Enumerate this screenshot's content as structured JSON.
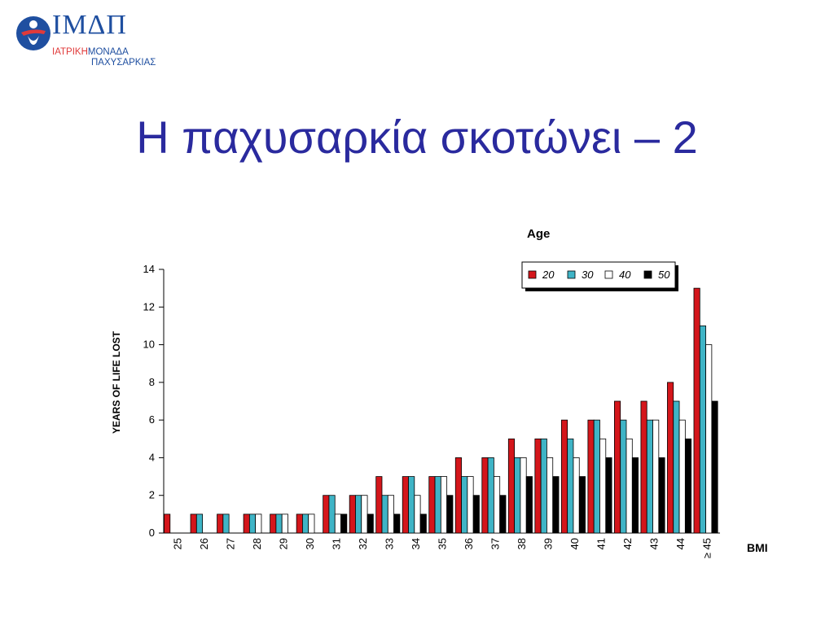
{
  "logo": {
    "letters": "ΙΜΔΠ",
    "line1_a": "ΙΑΤΡΙΚΗ",
    "line1_b": "ΜΟΝΑΔΑ",
    "line2": "ΠΑΧΥΣΑΡΚΙΑΣ",
    "colors": {
      "blue": "#1f4fa0",
      "red": "#e03a3a"
    }
  },
  "title": "Η παχυσαρκία σκοτώνει – 2",
  "chart_data": {
    "type": "bar",
    "title": "",
    "ylabel": "YEARS OF LIFE LOST",
    "xlabel": "BMI",
    "legend_title": "Age",
    "legend_placement": "top-right",
    "ylim": [
      0,
      14
    ],
    "yticks": [
      0,
      2,
      4,
      6,
      8,
      10,
      12,
      14
    ],
    "grid": false,
    "categories": [
      "25",
      "26",
      "27",
      "28",
      "29",
      "30",
      "31",
      "32",
      "33",
      "34",
      "35",
      "36",
      "37",
      "38",
      "39",
      "40",
      "41",
      "42",
      "43",
      "44",
      "≥ 45"
    ],
    "series": [
      {
        "name": "20",
        "color": "#d4161b",
        "values": [
          1,
          1,
          1,
          1,
          1,
          1,
          2,
          2,
          3,
          3,
          3,
          4,
          4,
          5,
          5,
          6,
          6,
          7,
          7,
          8,
          13
        ]
      },
      {
        "name": "30",
        "color": "#3fb4c6",
        "values": [
          0,
          1,
          1,
          1,
          1,
          1,
          2,
          2,
          2,
          3,
          3,
          3,
          4,
          4,
          5,
          5,
          6,
          6,
          6,
          7,
          11
        ]
      },
      {
        "name": "40",
        "color": "#ffffff",
        "values": [
          0,
          0,
          0,
          1,
          1,
          1,
          1,
          2,
          2,
          2,
          3,
          3,
          3,
          4,
          4,
          4,
          5,
          5,
          6,
          6,
          10
        ]
      },
      {
        "name": "50",
        "color": "#000000",
        "values": [
          0,
          0,
          0,
          0,
          0,
          0,
          1,
          1,
          1,
          1,
          2,
          2,
          2,
          3,
          3,
          3,
          4,
          4,
          4,
          5,
          7
        ]
      }
    ]
  }
}
